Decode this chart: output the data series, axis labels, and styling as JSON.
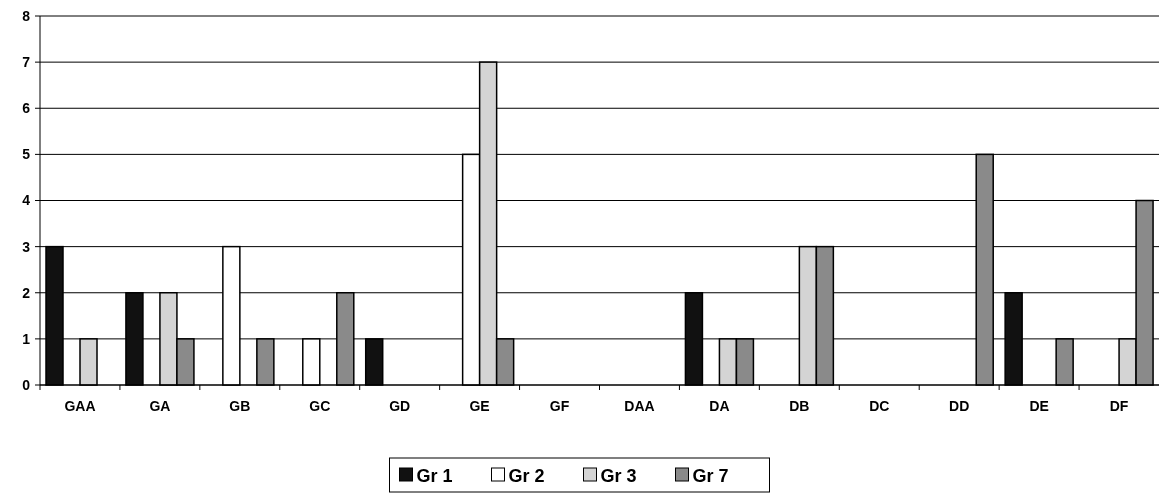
{
  "chart_data": {
    "type": "bar",
    "categories": [
      "GAA",
      "GA",
      "GB",
      "GC",
      "GD",
      "GE",
      "GF",
      "DAA",
      "DA",
      "DB",
      "DC",
      "DD",
      "DE",
      "DF"
    ],
    "series": [
      {
        "name": "Gr 1",
        "color": "#111111",
        "values": [
          3,
          2,
          0,
          0,
          1,
          0,
          0,
          0,
          2,
          0,
          0,
          0,
          2,
          0
        ]
      },
      {
        "name": "Gr 2",
        "color": "#ffffff",
        "values": [
          0,
          0,
          3,
          1,
          0,
          5,
          0,
          0,
          0,
          0,
          0,
          0,
          0,
          0
        ]
      },
      {
        "name": "Gr 3",
        "color": "#d4d4d4",
        "values": [
          1,
          2,
          0,
          0,
          0,
          7,
          0,
          0,
          1,
          3,
          0,
          0,
          0,
          1
        ]
      },
      {
        "name": "Gr 7",
        "color": "#8a8a8a",
        "values": [
          0,
          1,
          1,
          2,
          0,
          1,
          0,
          0,
          1,
          3,
          0,
          5,
          1,
          4
        ]
      }
    ],
    "ylim": [
      0,
      8
    ],
    "yticks": [
      0,
      1,
      2,
      3,
      4,
      5,
      6,
      7,
      8
    ],
    "grid": "y",
    "legend": "bottom"
  }
}
